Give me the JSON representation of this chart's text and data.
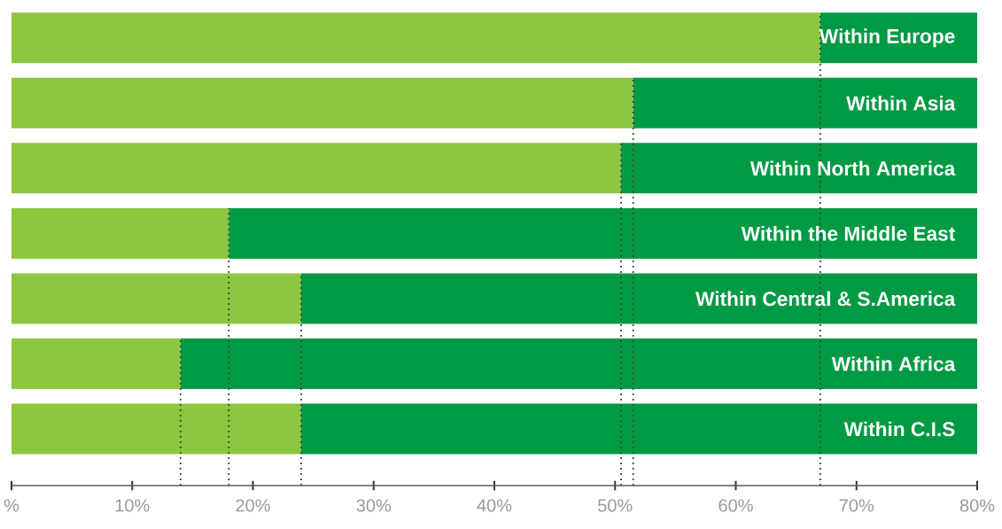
{
  "chart_data": {
    "type": "bar",
    "orientation": "horizontal",
    "stacked": true,
    "categories": [
      "Within Europe",
      "Within Asia",
      "Within North America",
      "Within the Middle East",
      "Within Central & S.America",
      "Within Africa",
      "Within C.I.S"
    ],
    "series": [
      {
        "color": "#8dc63f",
        "values": [
          67,
          51.5,
          50.5,
          18,
          24,
          14,
          24
        ]
      },
      {
        "color": "#009a44",
        "values": [
          13,
          28.5,
          29.5,
          62,
          56,
          66,
          56
        ]
      }
    ],
    "xlim": [
      0,
      80
    ],
    "xticks": [
      {
        "value": 0,
        "label": "%"
      },
      {
        "value": 10,
        "label": "10%"
      },
      {
        "value": 20,
        "label": "20%"
      },
      {
        "value": 30,
        "label": "30%"
      },
      {
        "value": 40,
        "label": "40%"
      },
      {
        "value": 50,
        "label": "50%"
      },
      {
        "value": 60,
        "label": "60%"
      },
      {
        "value": 70,
        "label": "70%"
      },
      {
        "value": 80,
        "label": "80%"
      }
    ],
    "ref_lines": [
      {
        "axis": "x",
        "value": 67,
        "line_style": "dotted"
      },
      {
        "axis": "x",
        "value": 51.5,
        "line_style": "dotted"
      },
      {
        "axis": "x",
        "value": 50.5,
        "line_style": "dotted"
      },
      {
        "axis": "x",
        "value": 18,
        "line_style": "dotted"
      },
      {
        "axis": "x",
        "value": 24,
        "line_style": "dotted"
      },
      {
        "axis": "x",
        "value": 14,
        "line_style": "dotted"
      }
    ]
  }
}
